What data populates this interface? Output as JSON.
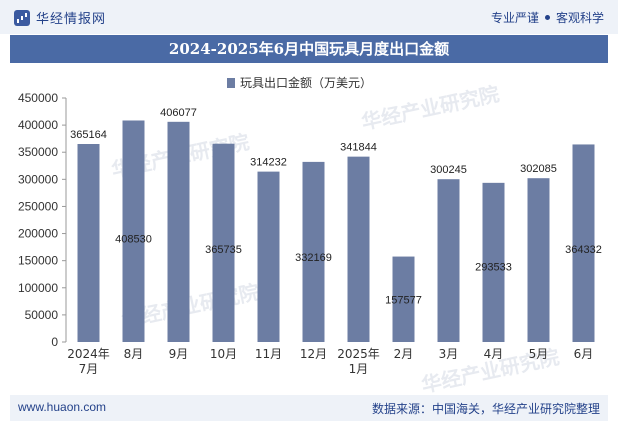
{
  "header": {
    "brand_name": "华经情报网",
    "tag_1": "专业严谨",
    "tag_2": "客观科学"
  },
  "footer": {
    "website": "www.huaon.com",
    "source": "数据来源：中国海关，华经产业研究院整理"
  },
  "watermarks": [
    "华经产业研究院",
    "www.huaon.com"
  ],
  "colors": {
    "bar": "#6c7da3",
    "title_bg": "#4a6aa5",
    "accent": "#24428a"
  },
  "chart_data": {
    "type": "bar",
    "title": "2024-2025年6月中国玩具月度出口金额",
    "legend": "玩具出口金额（万美元）",
    "legend_position": "top-center",
    "categories": [
      "2024年7月",
      "8月",
      "9月",
      "10月",
      "11月",
      "12月",
      "2025年1月",
      "2月",
      "3月",
      "4月",
      "5月",
      "6月"
    ],
    "series": [
      {
        "name": "玩具出口金额（万美元）",
        "values": [
          365164,
          408530,
          406077,
          365735,
          314232,
          332169,
          341844,
          157577,
          300245,
          293533,
          302085,
          364332
        ]
      }
    ],
    "ylim": [
      0,
      450000
    ],
    "yticks": [
      0,
      50000,
      100000,
      150000,
      200000,
      250000,
      300000,
      350000,
      400000,
      450000
    ],
    "grid": false
  }
}
